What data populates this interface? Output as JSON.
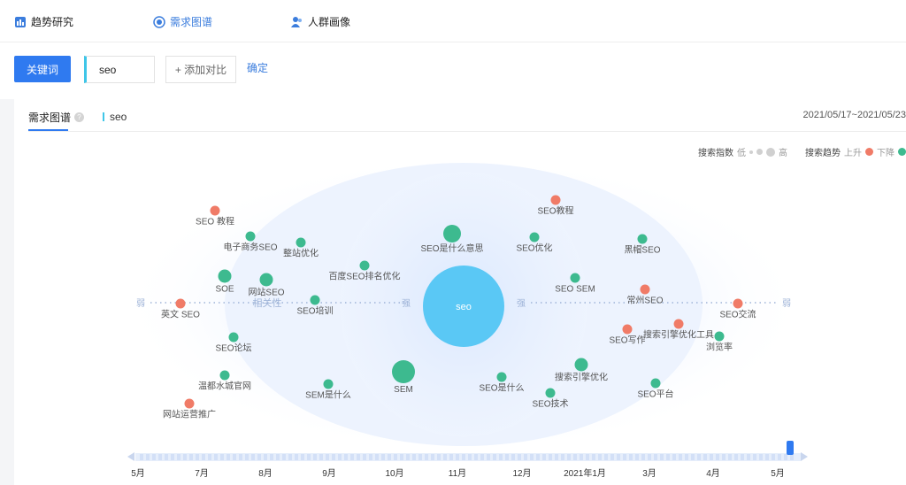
{
  "nav": {
    "items": [
      {
        "label": "趋势研究"
      },
      {
        "label": "需求图谱"
      },
      {
        "label": "人群画像"
      }
    ]
  },
  "toolbar": {
    "keyword_button": "关键词",
    "search_value": "seo",
    "add_compare": "+ 添加对比",
    "confirm": "确定"
  },
  "panel": {
    "tab_label": "需求图谱",
    "help": "?",
    "keyword": "seo",
    "date_range": "2021/05/17~2021/05/23"
  },
  "legend": {
    "index_label": "搜索指数",
    "low": "低",
    "high": "高",
    "trend_label": "搜索趋势",
    "up": "上升",
    "down": "下降"
  },
  "colors": {
    "up": "#f07b67",
    "down": "#3dba8f",
    "center": "#5ac8f5",
    "accent": "#2f7af0"
  },
  "graph": {
    "center_label": "seo",
    "relevance_label": "相关性",
    "weak_label": "弱",
    "strong_label": "强",
    "nodes": [
      {
        "label": "SEO 教程",
        "trend": "up",
        "weight": 1
      },
      {
        "label": "电子商务SEO",
        "trend": "down",
        "weight": 1
      },
      {
        "label": "整站优化",
        "trend": "down",
        "weight": 1
      },
      {
        "label": "SOE",
        "trend": "down",
        "weight": 2
      },
      {
        "label": "网站SEO",
        "trend": "down",
        "weight": 2
      },
      {
        "label": "百度SEO排名优化",
        "trend": "down",
        "weight": 1
      },
      {
        "label": "SEO是什么意思",
        "trend": "down",
        "weight": 3
      },
      {
        "label": "SEO教程",
        "trend": "up",
        "weight": 1
      },
      {
        "label": "SEO优化",
        "trend": "down",
        "weight": 1
      },
      {
        "label": "黑帽SEO",
        "trend": "down",
        "weight": 1
      },
      {
        "label": "SEO SEM",
        "trend": "down",
        "weight": 1
      },
      {
        "label": "英文 SEO",
        "trend": "up",
        "weight": 1
      },
      {
        "label": "SEO培训",
        "trend": "down",
        "weight": 1
      },
      {
        "label": "常州SEO",
        "trend": "up",
        "weight": 1
      },
      {
        "label": "SEO交流",
        "trend": "up",
        "weight": 1
      },
      {
        "label": "SEO论坛",
        "trend": "down",
        "weight": 1
      },
      {
        "label": "SEO写作",
        "trend": "up",
        "weight": 1
      },
      {
        "label": "搜索引擎优化工具",
        "trend": "up",
        "weight": 1
      },
      {
        "label": "浏览率",
        "trend": "down",
        "weight": 1
      },
      {
        "label": "温都水城官网",
        "trend": "down",
        "weight": 1
      },
      {
        "label": "SEM",
        "trend": "down",
        "weight": 4
      },
      {
        "label": "SEO是什么",
        "trend": "down",
        "weight": 1
      },
      {
        "label": "搜索引擎优化",
        "trend": "down",
        "weight": 2
      },
      {
        "label": "SEM是什么",
        "trend": "down",
        "weight": 1
      },
      {
        "label": "SEO技术",
        "trend": "down",
        "weight": 1
      },
      {
        "label": "SEO平台",
        "trend": "down",
        "weight": 1
      },
      {
        "label": "网站运营推广",
        "trend": "up",
        "weight": 1
      }
    ]
  },
  "timeline": {
    "months": [
      "5月",
      "7月",
      "8月",
      "9月",
      "10月",
      "11月",
      "12月",
      "2021年1月",
      "3月",
      "4月",
      "5月"
    ]
  }
}
